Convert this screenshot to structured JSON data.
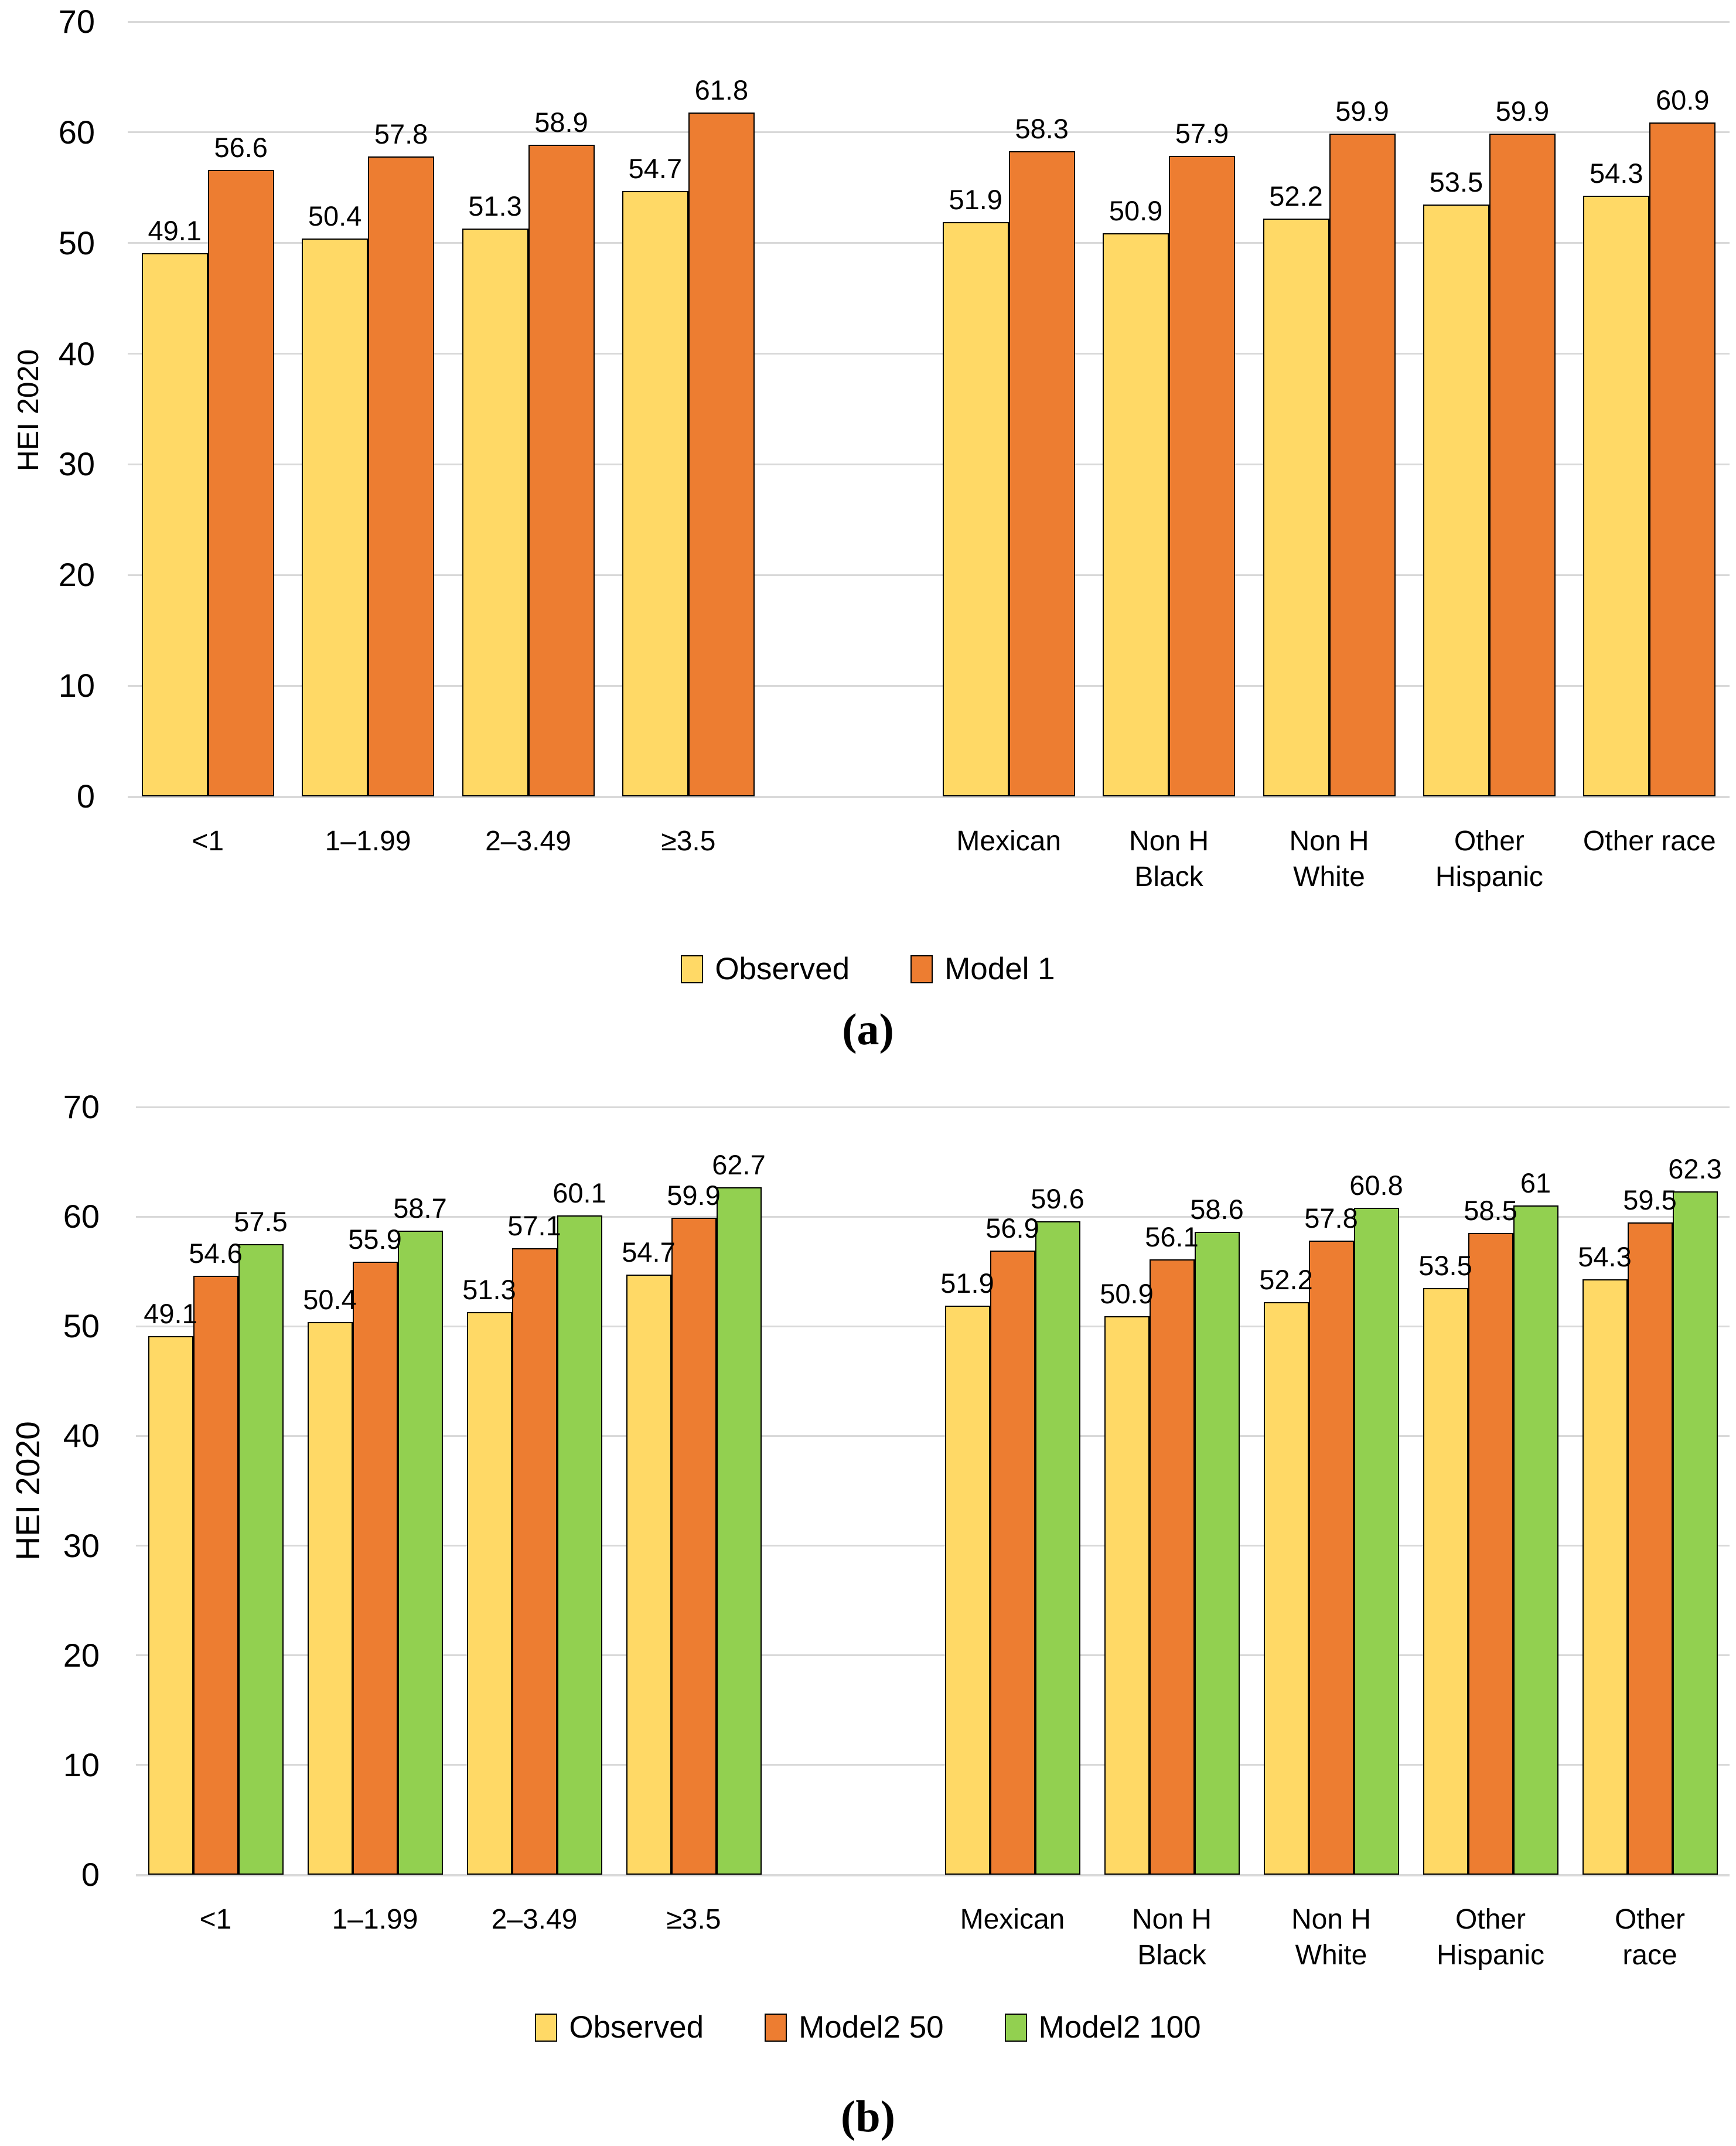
{
  "figure": {
    "background": "#FFFFFF",
    "gridline_color": "#D9D9D9",
    "bar_border_color": "#000000",
    "text_color": "#000000"
  },
  "chart_data": [
    {
      "id": "a",
      "type": "bar",
      "caption": "(a)",
      "ylabel": "HEI 2020",
      "ylim": [
        0,
        70
      ],
      "yticks": [
        0,
        10,
        20,
        30,
        40,
        50,
        60,
        70
      ],
      "grid": true,
      "legend_position": "bottom",
      "group_gap_after": 4,
      "categories": [
        [
          "<1"
        ],
        [
          "1–1.99"
        ],
        [
          "2–3.49"
        ],
        [
          "≥3.5"
        ],
        [
          "Mexican"
        ],
        [
          "Non H",
          "Black"
        ],
        [
          "Non H",
          "White"
        ],
        [
          "Other",
          "Hispanic"
        ],
        [
          "Other race"
        ]
      ],
      "series": [
        {
          "name": "Observed",
          "color": "#FFD966",
          "values": [
            49.1,
            50.4,
            51.3,
            54.7,
            51.9,
            50.9,
            52.2,
            53.5,
            54.3
          ]
        },
        {
          "name": "Model 1",
          "color": "#ED7D31",
          "values": [
            56.6,
            57.8,
            58.9,
            61.8,
            58.3,
            57.9,
            59.9,
            59.9,
            60.9
          ]
        }
      ]
    },
    {
      "id": "b",
      "type": "bar",
      "caption": "(b)",
      "ylabel": "HEI 2020",
      "ylim": [
        0,
        70
      ],
      "yticks": [
        0,
        10,
        20,
        30,
        40,
        50,
        60,
        70
      ],
      "grid": true,
      "legend_position": "bottom",
      "group_gap_after": 4,
      "categories": [
        [
          "<1"
        ],
        [
          "1–1.99"
        ],
        [
          "2–3.49"
        ],
        [
          "≥3.5"
        ],
        [
          "Mexican"
        ],
        [
          "Non H",
          "Black"
        ],
        [
          "Non H",
          "White"
        ],
        [
          "Other",
          "Hispanic"
        ],
        [
          "Other",
          "race"
        ]
      ],
      "series": [
        {
          "name": "Observed",
          "color": "#FFD966",
          "values": [
            49.1,
            50.4,
            51.3,
            54.7,
            51.9,
            50.9,
            52.2,
            53.5,
            54.3
          ]
        },
        {
          "name": "Model2 50",
          "color": "#ED7D31",
          "values": [
            54.6,
            55.9,
            57.1,
            59.9,
            56.9,
            56.1,
            57.8,
            58.5,
            59.5
          ]
        },
        {
          "name": "Model2 100",
          "color": "#92D050",
          "values": [
            57.5,
            58.7,
            60.1,
            62.7,
            59.6,
            58.6,
            60.8,
            61,
            62.3
          ]
        }
      ]
    }
  ]
}
